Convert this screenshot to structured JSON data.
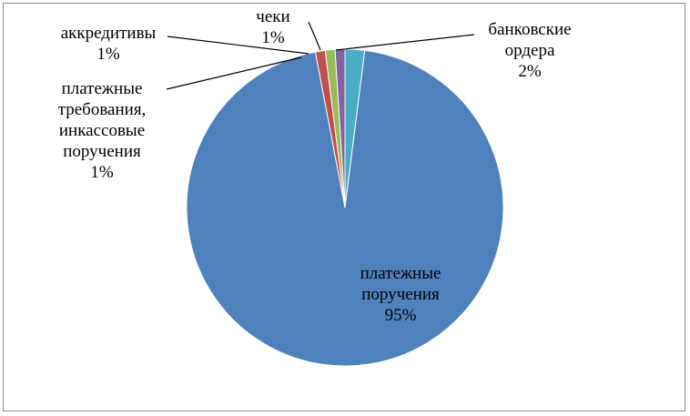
{
  "chart_data": {
    "type": "pie",
    "title": "",
    "slices": [
      {
        "id": "bank-orders",
        "lines": [
          "банковские",
          "ордера",
          "2%"
        ],
        "value": 2,
        "color": "#4bacc6"
      },
      {
        "id": "payment-orders",
        "lines": [
          "платежные",
          "поручения",
          "95%"
        ],
        "value": 95,
        "color": "#4f81bd"
      },
      {
        "id": "payment-demands",
        "lines": [
          "платежные",
          "требования,",
          "инкассовые",
          "поручения",
          "1%"
        ],
        "value": 1,
        "color": "#c0504d"
      },
      {
        "id": "letters-of-credit",
        "lines": [
          "аккредитивы",
          "1%"
        ],
        "value": 1,
        "color": "#9bbb59"
      },
      {
        "id": "cheques",
        "lines": [
          "чеки",
          "1%"
        ],
        "value": 1,
        "color": "#8064a2"
      }
    ]
  }
}
